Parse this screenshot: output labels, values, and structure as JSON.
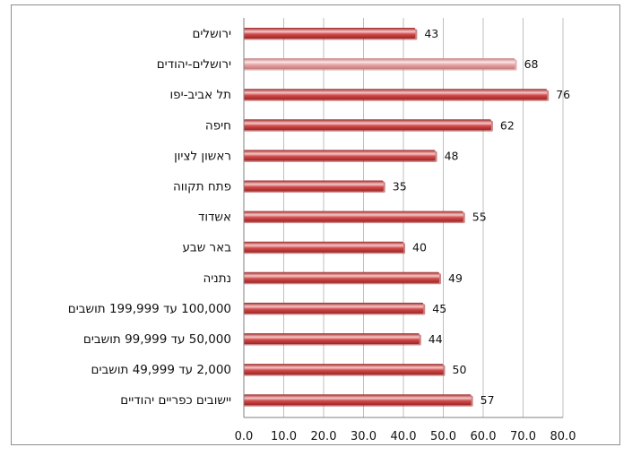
{
  "chart_data": {
    "type": "bar",
    "orientation": "horizontal",
    "title": "",
    "xlabel": "",
    "ylabel": "",
    "categories": [
      "ירושלים",
      "ירושלים-יהודים",
      "תל אביב-יפו",
      "חיפה",
      "ראשון לציון",
      "פתח תקווה",
      "אשדוד",
      "באר שבע",
      "נתניה",
      "100,000 עד 199,999 תושבים",
      "50,000 עד 99,999 תושבים",
      "2,000 עד 49,999 תושבים",
      "יישובים כפריים יהודיים"
    ],
    "values": [
      43,
      68,
      76,
      62,
      48,
      35,
      55,
      40,
      49,
      45,
      44,
      50,
      57
    ],
    "value_labels": [
      "43",
      "68",
      "76",
      "62",
      "48",
      "35",
      "55",
      "40",
      "49",
      "45",
      "44",
      "50",
      "57"
    ],
    "highlight_index": 1,
    "xlim": [
      0,
      80
    ],
    "x_ticks": [
      0,
      10,
      20,
      30,
      40,
      50,
      60,
      70,
      80
    ],
    "x_tick_labels": [
      "0.0",
      "10.0",
      "20.0",
      "30.0",
      "40.0",
      "50.0",
      "60.0",
      "70.0",
      "80.0"
    ],
    "grid": true,
    "legend": "none",
    "colors": {
      "bar": "#d24b4b",
      "bar_light": "#f6c8c8",
      "bar_dark": "#9e2424",
      "highlight_bar": "#e8a5a5",
      "highlight_light": "#fbe6e6",
      "highlight_dark": "#c47a7a",
      "gridline": "#bfbfbf",
      "axis": "#808080"
    }
  }
}
